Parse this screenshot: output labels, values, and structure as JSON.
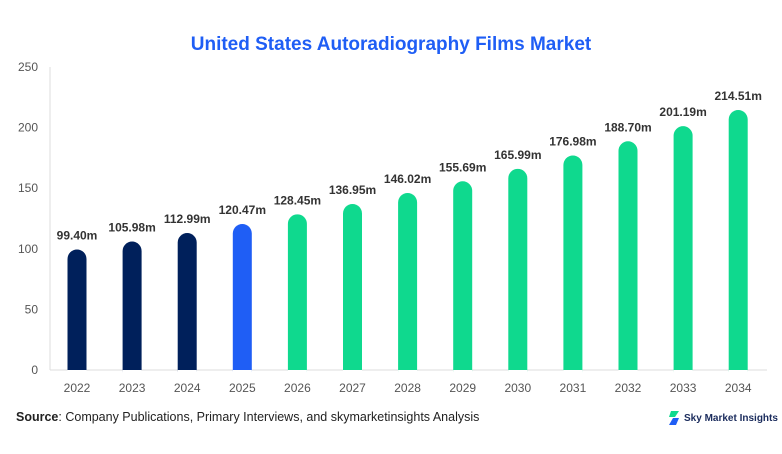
{
  "chart_data": {
    "type": "bar",
    "title": "United States Autoradiography Films Market",
    "categories": [
      "2022",
      "2023",
      "2024",
      "2025",
      "2026",
      "2027",
      "2028",
      "2029",
      "2030",
      "2031",
      "2032",
      "2033",
      "2034"
    ],
    "values": [
      99.4,
      105.98,
      112.99,
      120.47,
      128.45,
      136.95,
      146.02,
      155.69,
      165.99,
      176.98,
      188.7,
      201.19,
      214.51
    ],
    "data_labels": [
      "99.40m",
      "105.98m",
      "112.99m",
      "120.47m",
      "128.45m",
      "136.95m",
      "146.02m",
      "155.69m",
      "165.99m",
      "176.98m",
      "188.70m",
      "201.19m",
      "214.51m"
    ],
    "bar_colors": [
      "#00205b",
      "#00205b",
      "#00205b",
      "#1f5ef5",
      "#0fd98e",
      "#0fd98e",
      "#0fd98e",
      "#0fd98e",
      "#0fd98e",
      "#0fd98e",
      "#0fd98e",
      "#0fd98e",
      "#0fd98e"
    ],
    "ylim": [
      0,
      250
    ],
    "yticks": [
      0,
      50,
      100,
      150,
      200,
      250
    ],
    "xlabel": "",
    "ylabel": "",
    "grid": false,
    "legend": "none"
  },
  "source": {
    "label": "Source",
    "text": ": Company Publications, Primary Interviews, and skymarketinsights Analysis"
  },
  "logo": {
    "text": "Sky Market Insights"
  }
}
